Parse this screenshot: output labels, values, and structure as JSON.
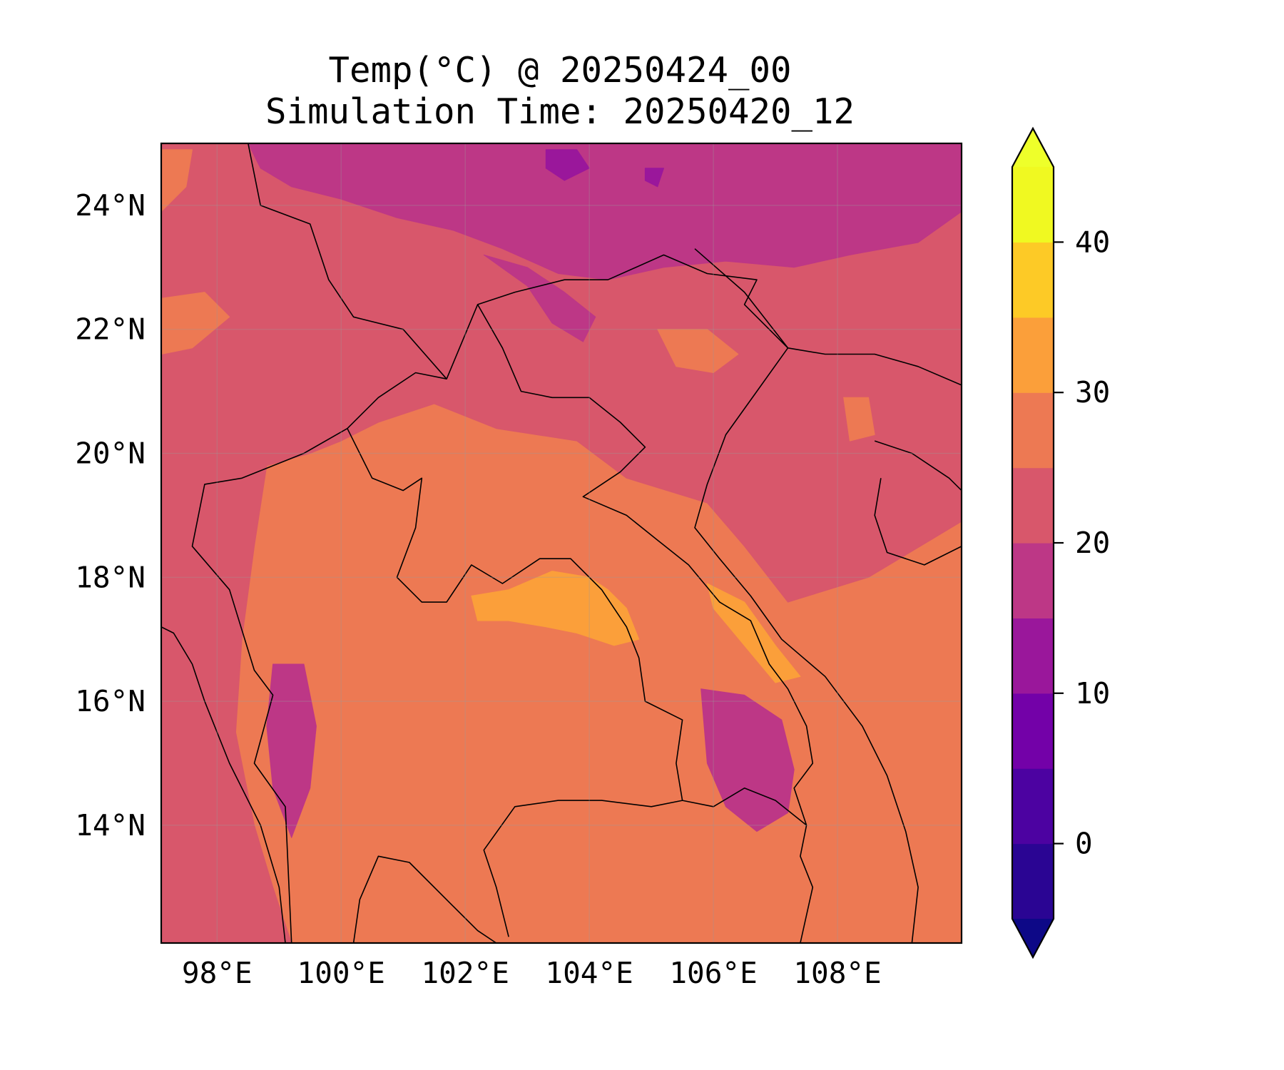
{
  "title": {
    "line1": "Temp(°C) @ 20250424_00",
    "line2": "Simulation Time: 20250420_12"
  },
  "map": {
    "projection": "PlateCarree",
    "lon_range": [
      97.1,
      110.0
    ],
    "lat_range": [
      12.1,
      25.0
    ],
    "grid": true,
    "features": [
      "coastlines",
      "country-borders"
    ],
    "longitude_ticks": [
      {
        "value": 98,
        "label": "98°E"
      },
      {
        "value": 100,
        "label": "100°E"
      },
      {
        "value": 102,
        "label": "102°E"
      },
      {
        "value": 104,
        "label": "104°E"
      },
      {
        "value": 106,
        "label": "106°E"
      },
      {
        "value": 108,
        "label": "108°E"
      }
    ],
    "latitude_ticks": [
      {
        "value": 24,
        "label": "24°N"
      },
      {
        "value": 22,
        "label": "22°N"
      },
      {
        "value": 20,
        "label": "20°N"
      },
      {
        "value": 18,
        "label": "18°N"
      },
      {
        "value": 16,
        "label": "16°N"
      },
      {
        "value": 14,
        "label": "14°N"
      }
    ],
    "background_level": 27.5,
    "regions": [
      {
        "level": 22.5,
        "lonlat": [
          [
            97.1,
            25
          ],
          [
            110,
            25
          ],
          [
            110,
            18.9
          ],
          [
            108.5,
            18.0
          ],
          [
            107.2,
            17.6
          ],
          [
            106.5,
            18.5
          ],
          [
            105.9,
            19.2
          ],
          [
            104.6,
            19.6
          ],
          [
            103.8,
            20.2
          ],
          [
            102.5,
            20.4
          ],
          [
            101.5,
            20.8
          ],
          [
            100.6,
            20.5
          ],
          [
            100.0,
            20.2
          ],
          [
            99.5,
            20.0
          ],
          [
            98.8,
            19.8
          ],
          [
            98.6,
            18.5
          ],
          [
            98.4,
            17.0
          ],
          [
            98.3,
            15.5
          ],
          [
            98.6,
            14.0
          ],
          [
            98.9,
            13.0
          ],
          [
            99.2,
            12.1
          ],
          [
            97.1,
            12.1
          ]
        ]
      },
      {
        "level": 17.5,
        "lonlat": [
          [
            98.5,
            25
          ],
          [
            110,
            25
          ],
          [
            110,
            23.9
          ],
          [
            109.3,
            23.4
          ],
          [
            108.2,
            23.2
          ],
          [
            107.3,
            23.0
          ],
          [
            106.2,
            23.1
          ],
          [
            105.2,
            23.0
          ],
          [
            104.3,
            22.8
          ],
          [
            103.5,
            22.9
          ],
          [
            102.6,
            23.3
          ],
          [
            101.8,
            23.6
          ],
          [
            100.9,
            23.8
          ],
          [
            100.0,
            24.1
          ],
          [
            99.2,
            24.3
          ],
          [
            98.7,
            24.6
          ]
        ]
      },
      {
        "level": 17.5,
        "lonlat": [
          [
            102.3,
            23.2
          ],
          [
            103.0,
            22.7
          ],
          [
            103.4,
            22.1
          ],
          [
            103.9,
            21.8
          ],
          [
            104.1,
            22.2
          ],
          [
            103.6,
            22.6
          ],
          [
            103.0,
            23.0
          ]
        ]
      },
      {
        "level": 17.5,
        "lonlat": [
          [
            105.8,
            16.2
          ],
          [
            106.5,
            16.1
          ],
          [
            107.1,
            15.7
          ],
          [
            107.3,
            14.9
          ],
          [
            107.2,
            14.2
          ],
          [
            106.7,
            13.9
          ],
          [
            106.2,
            14.3
          ],
          [
            105.9,
            15.0
          ]
        ]
      },
      {
        "level": 17.5,
        "lonlat": [
          [
            98.9,
            16.6
          ],
          [
            99.4,
            16.6
          ],
          [
            99.6,
            15.6
          ],
          [
            99.5,
            14.6
          ],
          [
            99.2,
            13.8
          ],
          [
            98.9,
            14.6
          ],
          [
            98.8,
            15.6
          ]
        ]
      },
      {
        "level": 12.5,
        "lonlat": [
          [
            103.3,
            24.9
          ],
          [
            103.8,
            24.9
          ],
          [
            104.0,
            24.6
          ],
          [
            103.6,
            24.4
          ],
          [
            103.3,
            24.6
          ]
        ]
      },
      {
        "level": 12.5,
        "lonlat": [
          [
            104.9,
            24.6
          ],
          [
            105.2,
            24.6
          ],
          [
            105.1,
            24.3
          ],
          [
            104.9,
            24.4
          ]
        ]
      },
      {
        "level": 27.5,
        "lonlat": [
          [
            105.1,
            22.0
          ],
          [
            105.9,
            22.0
          ],
          [
            106.4,
            21.6
          ],
          [
            106.0,
            21.3
          ],
          [
            105.4,
            21.4
          ]
        ]
      },
      {
        "level": 27.5,
        "lonlat": [
          [
            108.1,
            20.9
          ],
          [
            108.5,
            20.9
          ],
          [
            108.6,
            20.3
          ],
          [
            108.2,
            20.2
          ]
        ]
      },
      {
        "level": 27.5,
        "lonlat": [
          [
            97.1,
            22.5
          ],
          [
            97.8,
            22.6
          ],
          [
            98.2,
            22.2
          ],
          [
            97.6,
            21.7
          ],
          [
            97.1,
            21.6
          ]
        ]
      },
      {
        "level": 27.5,
        "lonlat": [
          [
            97.1,
            24.9
          ],
          [
            97.6,
            24.9
          ],
          [
            97.5,
            24.3
          ],
          [
            97.1,
            23.9
          ]
        ]
      },
      {
        "level": 32.5,
        "lonlat": [
          [
            102.1,
            17.7
          ],
          [
            102.7,
            17.8
          ],
          [
            103.4,
            18.1
          ],
          [
            104.0,
            18.0
          ],
          [
            104.3,
            17.8
          ],
          [
            104.6,
            17.5
          ],
          [
            104.8,
            17.0
          ],
          [
            104.4,
            16.9
          ],
          [
            103.8,
            17.1
          ],
          [
            103.3,
            17.2
          ],
          [
            102.7,
            17.3
          ],
          [
            102.2,
            17.3
          ]
        ]
      },
      {
        "level": 32.5,
        "lonlat": [
          [
            105.9,
            17.9
          ],
          [
            106.5,
            17.6
          ],
          [
            107.0,
            16.9
          ],
          [
            107.4,
            16.4
          ],
          [
            107.0,
            16.3
          ],
          [
            106.5,
            16.9
          ],
          [
            106.0,
            17.5
          ]
        ]
      }
    ]
  },
  "colorbar": {
    "colormap": "plasma",
    "extend": "both",
    "ticks": [
      {
        "value": 0,
        "label": "0"
      },
      {
        "value": 10,
        "label": "10"
      },
      {
        "value": 20,
        "label": "20"
      },
      {
        "value": 30,
        "label": "30"
      },
      {
        "value": 40,
        "label": "40"
      }
    ],
    "levels": [
      -5,
      0,
      5,
      10,
      15,
      20,
      25,
      30,
      35,
      40,
      45
    ],
    "colors": [
      "#2a0593",
      "#4c02a1",
      "#7301a8",
      "#9a179b",
      "#bd3786",
      "#d8576b",
      "#ed7953",
      "#fb9f3a",
      "#fdca26",
      "#f0f921"
    ],
    "under_color": "#0d0887",
    "over_color": "#eeff2a"
  }
}
